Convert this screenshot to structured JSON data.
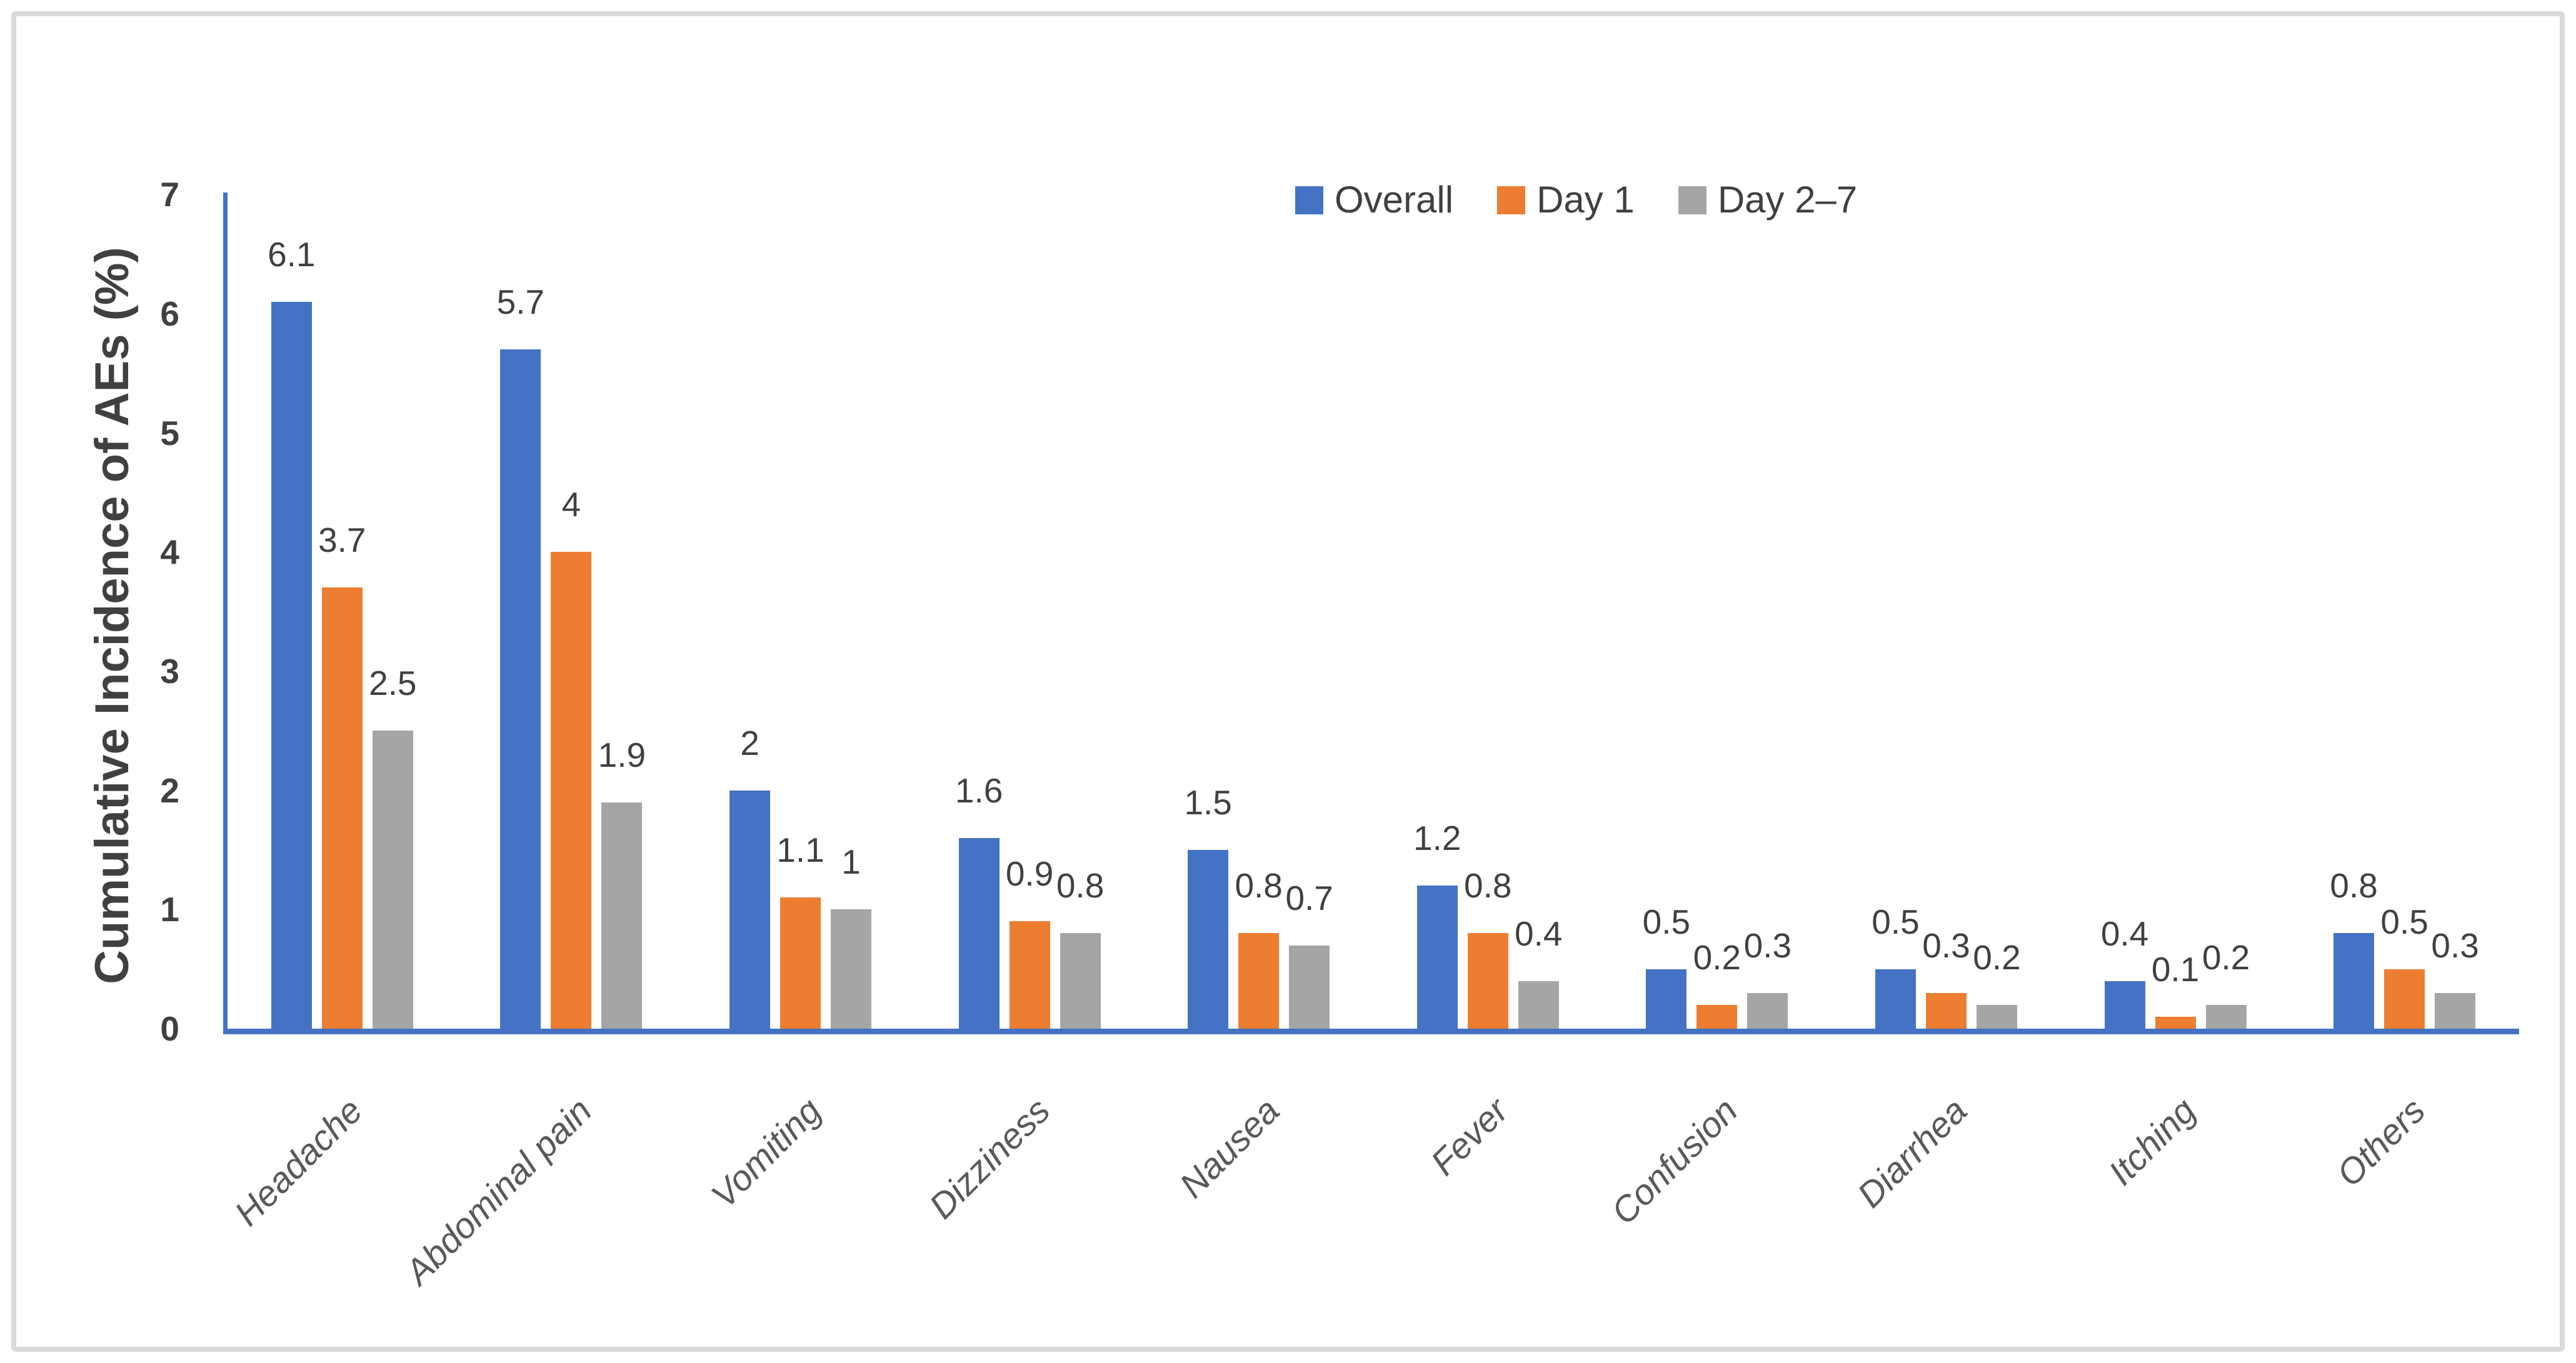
{
  "chart_data": {
    "type": "bar",
    "ylabel": "Cumulative Incidence of AEs (%)",
    "xlabel": "",
    "ylim": [
      0,
      7
    ],
    "yticks": [
      0,
      1,
      2,
      3,
      4,
      5,
      6,
      7
    ],
    "grid": false,
    "legend_position": "top-center",
    "data_labels": true,
    "categories": [
      "Headache",
      "Abdominal pain",
      "Vomiting",
      "Dizziness",
      "Nausea",
      "Fever",
      "Confusion",
      "Diarrhea",
      "Itching",
      "Others"
    ],
    "series": [
      {
        "name": "Overall",
        "color": "#4472C4",
        "values": [
          6.1,
          5.7,
          2,
          1.6,
          1.5,
          1.2,
          0.5,
          0.5,
          0.4,
          0.8
        ]
      },
      {
        "name": "Day 1",
        "color": "#ED7D31",
        "values": [
          3.7,
          4,
          1.1,
          0.9,
          0.8,
          0.8,
          0.2,
          0.3,
          0.1,
          0.5
        ]
      },
      {
        "name": "Day 2–7",
        "color": "#A5A5A5",
        "values": [
          2.5,
          1.9,
          1,
          0.8,
          0.7,
          0.4,
          0.3,
          0.2,
          0.2,
          0.3
        ]
      }
    ],
    "axis_color": "#4472C4",
    "tick_label_color": "#404040",
    "data_label_color": "#404040",
    "category_label_color": "#595959",
    "frame_border_color": "#D9D9D9",
    "background_color": "#FFFFFF"
  }
}
